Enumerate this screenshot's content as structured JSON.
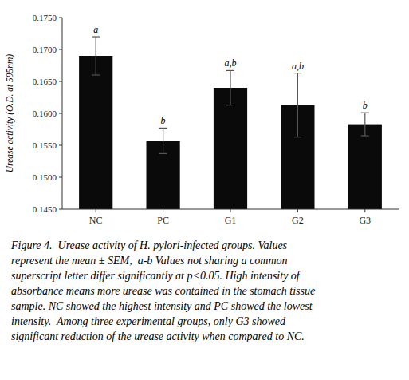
{
  "chart_data": {
    "type": "bar",
    "categories": [
      "NC",
      "PC",
      "G1",
      "G2",
      "G3"
    ],
    "values": [
      0.169,
      0.1557,
      0.164,
      0.1613,
      0.1583
    ],
    "errors": [
      0.003,
      0.002,
      0.0027,
      0.005,
      0.0018
    ],
    "annotations": [
      "a",
      "b",
      "a,b",
      "a,b",
      "b"
    ],
    "color": "#0a0a0a",
    "ylabel": "Urease activity (O.D. at 595nm)",
    "ylim": [
      0.145,
      0.175
    ],
    "yticks": [
      {
        "value": 0.145,
        "label": "0.1450"
      },
      {
        "value": 0.15,
        "label": "0.1500"
      },
      {
        "value": 0.155,
        "label": "0.1550"
      },
      {
        "value": 0.16,
        "label": "0.1600"
      },
      {
        "value": 0.165,
        "label": "0.1650"
      },
      {
        "value": 0.17,
        "label": "0.1700"
      },
      {
        "value": 0.175,
        "label": "0.1750"
      }
    ],
    "grid": false,
    "caption": [
      "Figure 4.  Urease activity of H. pylori-infected groups. Values",
      "represent the mean ± SEM,  a-b Values not sharing a common",
      "superscript letter differ significantly at p<0.05. High intensity of",
      "absorbance means more urease was contained in the stomach tissue",
      "sample. NC showed the highest intensity and PC showed the lowest",
      "intensity.  Among three experimental groups, only G3 showed",
      "significant reduction of the urease activity when compared to NC."
    ]
  }
}
